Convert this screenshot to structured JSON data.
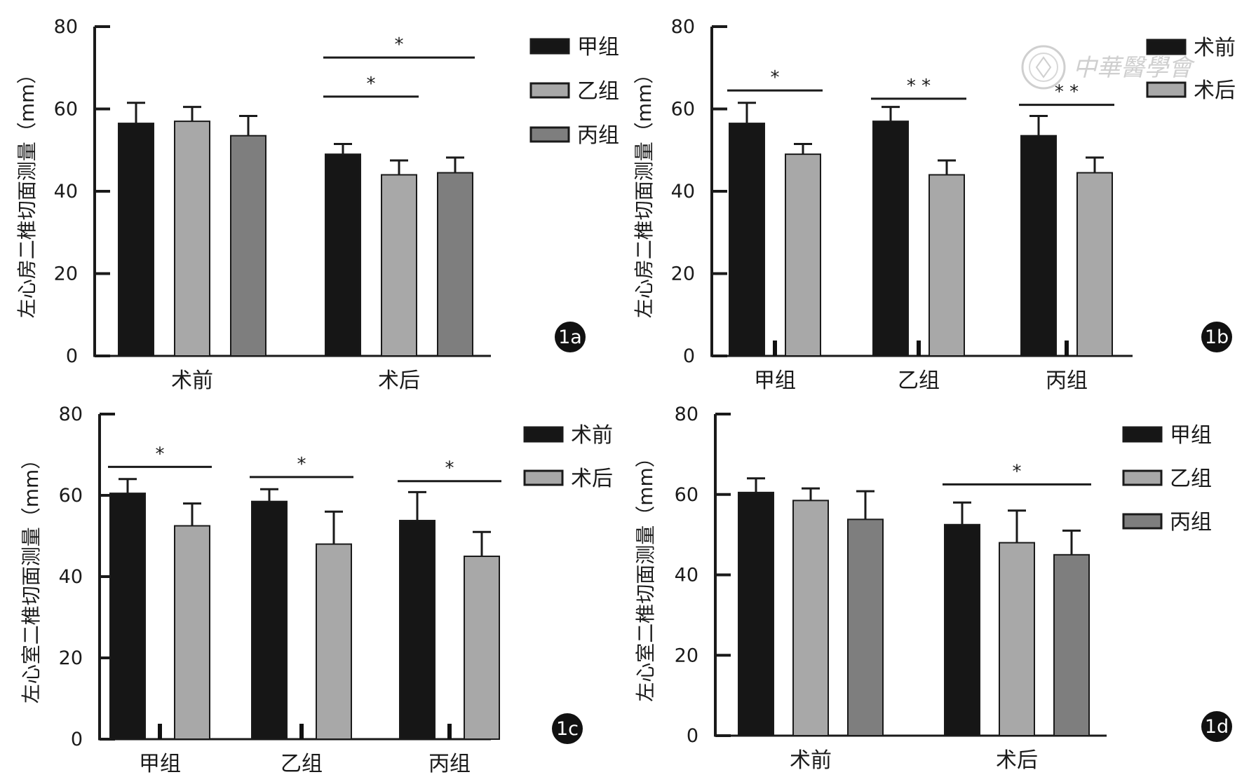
{
  "colors": {
    "black": "#161616",
    "light": "#a8a8a8",
    "mid": "#7e7e7e",
    "axis": "#1a1a1a",
    "badge": "#111111"
  },
  "watermark": {
    "text": "中華醫學會"
  },
  "chart_data": [
    {
      "id": "1a",
      "badge": "1a",
      "type": "bar",
      "ylabel": "左心房二椎切面测量（mm）",
      "ylim": [
        0,
        80
      ],
      "yticks": [
        "0",
        "20",
        "40",
        "60",
        "80"
      ],
      "categories": [
        "术前",
        "术后"
      ],
      "series": [
        {
          "name": "甲组",
          "color": "black",
          "values": [
            56.5,
            49.0
          ],
          "errors": [
            5.0,
            2.5
          ]
        },
        {
          "name": "乙组",
          "color": "light",
          "values": [
            57.0,
            44.0
          ],
          "errors": [
            3.5,
            3.5
          ]
        },
        {
          "name": "丙组",
          "color": "mid",
          "values": [
            53.5,
            44.5
          ],
          "errors": [
            4.8,
            3.7
          ]
        }
      ],
      "legend": [
        "甲组",
        "乙组",
        "丙组"
      ],
      "sig": [
        {
          "label": "*",
          "cat": 1,
          "from": 0,
          "to": 1,
          "y": 63
        },
        {
          "label": "*",
          "cat": 1,
          "from": 0,
          "to": 2,
          "y": 72.5
        }
      ]
    },
    {
      "id": "1b",
      "badge": "1b",
      "type": "bar",
      "ylabel": "左心房二椎切面测量（mm）",
      "ylim": [
        0,
        80
      ],
      "yticks": [
        "0",
        "20",
        "40",
        "60",
        "80"
      ],
      "categories": [
        "甲组",
        "乙组",
        "丙组"
      ],
      "series": [
        {
          "name": "术前",
          "color": "black",
          "values": [
            56.5,
            57.0,
            53.5
          ],
          "errors": [
            5.0,
            3.5,
            4.8
          ]
        },
        {
          "name": "术后",
          "color": "light",
          "values": [
            49.0,
            44.0,
            44.5
          ],
          "errors": [
            2.5,
            3.5,
            3.7
          ]
        }
      ],
      "legend": [
        "术前",
        "术后"
      ],
      "sig": [
        {
          "label": "*",
          "cat": 0,
          "from": 0,
          "to": 1,
          "y": 64.5
        },
        {
          "label": "* *",
          "cat": 1,
          "from": 0,
          "to": 1,
          "y": 62.5
        },
        {
          "label": "* *",
          "cat": 2,
          "from": 0,
          "to": 1,
          "y": 61
        }
      ]
    },
    {
      "id": "1c",
      "badge": "1c",
      "type": "bar",
      "ylabel": "左心室二椎切面测量（mm）",
      "ylim": [
        0,
        80
      ],
      "yticks": [
        "0",
        "20",
        "40",
        "60",
        "80"
      ],
      "categories": [
        "甲组",
        "乙组",
        "丙组"
      ],
      "series": [
        {
          "name": "术前",
          "color": "black",
          "values": [
            60.5,
            58.5,
            53.8
          ],
          "errors": [
            3.5,
            3.0,
            7.0
          ]
        },
        {
          "name": "术后",
          "color": "light",
          "values": [
            52.5,
            48.0,
            45.0
          ],
          "errors": [
            5.5,
            8.0,
            6.0
          ]
        }
      ],
      "legend": [
        "术前",
        "术后"
      ],
      "sig": [
        {
          "label": "*",
          "cat": 0,
          "from": 0,
          "to": 1,
          "y": 67
        },
        {
          "label": "*",
          "cat": 1,
          "from": 0,
          "to": 1,
          "y": 64.5
        },
        {
          "label": "*",
          "cat": 2,
          "from": 0,
          "to": 1,
          "y": 63.5
        }
      ]
    },
    {
      "id": "1d",
      "badge": "1d",
      "type": "bar",
      "ylabel": "左心室二椎切面测量（mm）",
      "ylim": [
        0,
        80
      ],
      "yticks": [
        "0",
        "20",
        "40",
        "60",
        "80"
      ],
      "categories": [
        "术前",
        "术后"
      ],
      "series": [
        {
          "name": "甲组",
          "color": "black",
          "values": [
            60.5,
            52.5
          ],
          "errors": [
            3.5,
            5.5
          ]
        },
        {
          "name": "乙组",
          "color": "light",
          "values": [
            58.5,
            48.0
          ],
          "errors": [
            3.0,
            8.0
          ]
        },
        {
          "name": "丙组",
          "color": "mid",
          "values": [
            53.8,
            45.0
          ],
          "errors": [
            7.0,
            6.0
          ]
        }
      ],
      "legend": [
        "甲组",
        "乙组",
        "丙组"
      ],
      "sig": [
        {
          "label": "*",
          "cat": 1,
          "from": 0,
          "to": 2,
          "y": 62.5
        }
      ]
    }
  ]
}
